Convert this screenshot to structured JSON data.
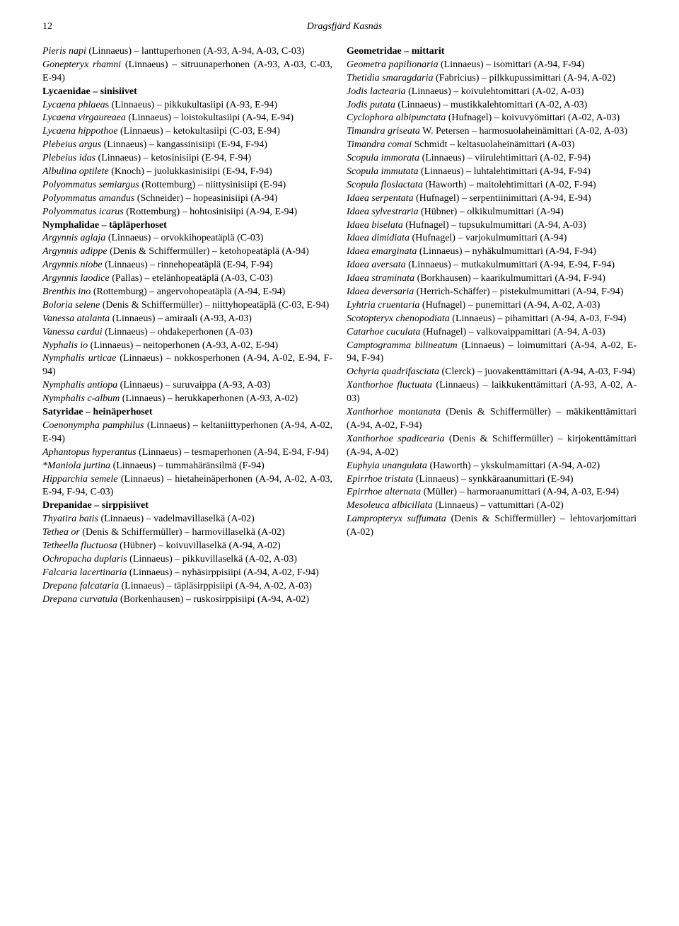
{
  "header": {
    "pageNumber": "12",
    "title": "Dragsfjärd Kasnäs"
  },
  "leftColumn": [
    {
      "type": "entry",
      "segments": [
        {
          "t": "Pieris napi",
          "i": true
        },
        {
          "t": " (Linnaeus) – lanttuperhonen (A-93, A-94, A-03, C-03)"
        }
      ]
    },
    {
      "type": "entry",
      "segments": [
        {
          "t": "Gonepteryx rhamni",
          "i": true
        },
        {
          "t": " (Linnaeus) – sitruunaperhonen (A-93, A-03, C-03, E-94)"
        }
      ]
    },
    {
      "type": "entry",
      "segments": [
        {
          "t": "Lycaenidae – sinisiivet",
          "b": true
        }
      ]
    },
    {
      "type": "entry",
      "segments": [
        {
          "t": "Lycaena phlaea",
          "i": true
        },
        {
          "t": "s (Linnaeus) – pikkukultasiipi (A-93, E-94)"
        }
      ]
    },
    {
      "type": "entry",
      "segments": [
        {
          "t": "Lycaena virgaureaea",
          "i": true
        },
        {
          "t": " (Linnaeus) – loistokultasiipi (A-94, E-94)"
        }
      ]
    },
    {
      "type": "entry",
      "segments": [
        {
          "t": "Lycaena hippothoe",
          "i": true
        },
        {
          "t": " (Linnaeus) – ketokultasiipi (C-03, E-94)"
        }
      ]
    },
    {
      "type": "entry",
      "segments": [
        {
          "t": "Plebeius argus",
          "i": true
        },
        {
          "t": " (Linnaeus) – kangassinisiipi (E-94, F-94)"
        }
      ]
    },
    {
      "type": "entry",
      "segments": [
        {
          "t": "Plebeius idas",
          "i": true
        },
        {
          "t": " (Linnaeus) – ketosinisiipi (E-94, F-94)"
        }
      ]
    },
    {
      "type": "entry",
      "segments": [
        {
          "t": "Albulina optilete",
          "i": true
        },
        {
          "t": " (Knoch) – juolukkasinisiipi (E-94, F-94)"
        }
      ]
    },
    {
      "type": "entry",
      "segments": [
        {
          "t": "Polyommatus semiargus",
          "i": true
        },
        {
          "t": " (Rottemburg) – niittysinisiipi (E-94)"
        }
      ]
    },
    {
      "type": "entry",
      "segments": [
        {
          "t": "Polyommatus amandus",
          "i": true
        },
        {
          "t": " (Schneider) – hopeasinisiipi (A-94)"
        }
      ]
    },
    {
      "type": "entry",
      "segments": [
        {
          "t": "Polyommatus icarus",
          "i": true
        },
        {
          "t": " (Rottemburg) – hohtosinisiipi (A-94, E-94)"
        }
      ]
    },
    {
      "type": "entry",
      "segments": [
        {
          "t": "Nymphalidae – täpläperhoset",
          "b": true
        }
      ]
    },
    {
      "type": "entry",
      "segments": [
        {
          "t": "Argynnis aglaja",
          "i": true
        },
        {
          "t": " (Linnaeus) – orvokkihopeatäplä (C-03)"
        }
      ]
    },
    {
      "type": "entry",
      "segments": [
        {
          "t": "Argynnis adippe",
          "i": true
        },
        {
          "t": " (Denis & Schiffermüller) – ketohopeatäplä (A-94)"
        }
      ]
    },
    {
      "type": "entry",
      "segments": [
        {
          "t": "Argynnis niobe",
          "i": true
        },
        {
          "t": " (Linnaeus) – rinnehopeatäplä (E-94, F-94)"
        }
      ]
    },
    {
      "type": "entry",
      "segments": [
        {
          "t": "Argynnis laodice",
          "i": true
        },
        {
          "t": " (Pallas) – etelänhopeatäplä (A-03, C-03)"
        }
      ]
    },
    {
      "type": "entry",
      "segments": [
        {
          "t": "Brenthis ino",
          "i": true
        },
        {
          "t": " (Rottemburg) – angervohopeatäplä (A-94, E-94)"
        }
      ]
    },
    {
      "type": "entry",
      "segments": [
        {
          "t": "Boloria selene",
          "i": true
        },
        {
          "t": " (Denis & Schiffermüller) – niittyhopeatäplä (C-03, E-94)"
        }
      ]
    },
    {
      "type": "entry",
      "segments": [
        {
          "t": "Vanessa atalanta",
          "i": true
        },
        {
          "t": " (Linnaeus) – amiraali (A-93, A-03)"
        }
      ]
    },
    {
      "type": "entry",
      "segments": [
        {
          "t": "Vanessa cardui",
          "i": true
        },
        {
          "t": " (Linnaeus) – ohdakeperhonen (A-03)"
        }
      ]
    },
    {
      "type": "entry",
      "segments": [
        {
          "t": "Nyphalis io",
          "i": true
        },
        {
          "t": " (Linnaeus) – neitoperhonen (A-93, A-02, E-94)"
        }
      ]
    },
    {
      "type": "entry",
      "segments": [
        {
          "t": "Nymphalis urticae",
          "i": true
        },
        {
          "t": " (Linnaeus) – nokkosperhonen (A-94, A-02, E-94, F-94)"
        }
      ]
    },
    {
      "type": "entry",
      "segments": [
        {
          "t": "Nymphalis antiopa",
          "i": true
        },
        {
          "t": " (Linnaeus) – suruvaippa (A-93, A-03)"
        }
      ]
    },
    {
      "type": "entry",
      "segments": [
        {
          "t": "Nymphalis c-album",
          "i": true
        },
        {
          "t": " (Linnaeus) – herukkaperhonen (A-93, A-02)"
        }
      ]
    },
    {
      "type": "entry",
      "segments": [
        {
          "t": "Satyridae – heinäperhoset",
          "b": true
        }
      ]
    },
    {
      "type": "entry",
      "segments": [
        {
          "t": "Coenonympha pamphilus",
          "i": true
        },
        {
          "t": " (Linnaeus) – keltaniittyperhonen (A-94, A-02, E-94)"
        }
      ]
    },
    {
      "type": "entry",
      "segments": [
        {
          "t": "Aphantopus hyperantus",
          "i": true
        },
        {
          "t": " (Linnaeus) – tesmaperhonen (A-94, E-94, F-94)"
        }
      ]
    },
    {
      "type": "entry",
      "segments": [
        {
          "t": "*Maniola jurtina",
          "i": true
        },
        {
          "t": " (Linnaeus) – tummahäränsilmä (F-94)"
        }
      ]
    },
    {
      "type": "entry",
      "segments": [
        {
          "t": "Hipparchia semele",
          "i": true
        },
        {
          "t": " (Linnaeus) – hietaheinäperhonen (A-94, A-02, A-03, E-94, F-94, C-03)"
        }
      ]
    },
    {
      "type": "entry",
      "segments": [
        {
          "t": "Drepanidae – sirppisiivet",
          "b": true
        }
      ]
    },
    {
      "type": "entry",
      "segments": [
        {
          "t": "Thyatira batis",
          "i": true
        },
        {
          "t": " (Linnaeus) – vadelmavillaselkä (A-02)"
        }
      ]
    },
    {
      "type": "entry",
      "segments": [
        {
          "t": "Tethea or",
          "i": true
        },
        {
          "t": " (Denis & Schiffermüller) – harmovillaselkä (A-02)"
        }
      ]
    },
    {
      "type": "entry",
      "segments": [
        {
          "t": "Tetheella fluctuosa",
          "i": true
        },
        {
          "t": " (Hübner) – koivuvillaselkä (A-94, A-02)"
        }
      ]
    },
    {
      "type": "entry",
      "segments": [
        {
          "t": "Ochropacha duplaris",
          "i": true
        },
        {
          "t": " (Linnaeus) – pikkuvillaselkä (A-02, A-03)"
        }
      ]
    },
    {
      "type": "entry",
      "segments": [
        {
          "t": "Falcaria lacertinaria",
          "i": true
        },
        {
          "t": " (Linnaeus) – nyhäsirppisiipi (A-94, A-02, F-94)"
        }
      ]
    },
    {
      "type": "entry",
      "segments": [
        {
          "t": "Drepana falcataria",
          "i": true
        },
        {
          "t": " (Linnaeus) – täpläsirppisiipi (A-94, A-02, A-03)"
        }
      ]
    },
    {
      "type": "entry",
      "segments": [
        {
          "t": "Drepana curvatula",
          "i": true
        },
        {
          "t": " (Borkenhausen) – ruskosirppisiipi (A-94, A-02)"
        }
      ]
    }
  ],
  "rightColumn": [
    {
      "type": "entry",
      "segments": [
        {
          "t": "Geometridae – mittarit",
          "b": true
        }
      ]
    },
    {
      "type": "entry",
      "segments": [
        {
          "t": "Geometra papilionaria",
          "i": true
        },
        {
          "t": " (Linnaeus) – isomittari (A-94, F-94)"
        }
      ]
    },
    {
      "type": "entry",
      "segments": [
        {
          "t": "Thetidia smaragdaria",
          "i": true
        },
        {
          "t": " (Fabricius) – pilkkupussimittari (A-94, A-02)"
        }
      ]
    },
    {
      "type": "entry",
      "segments": [
        {
          "t": "Jodis lactearia",
          "i": true
        },
        {
          "t": " (Linnaeus) – koivulehtomittari (A-02, A-03)"
        }
      ]
    },
    {
      "type": "entry",
      "segments": [
        {
          "t": "Jodis putata",
          "i": true
        },
        {
          "t": " (Linnaeus) – mustikkalehtomittari (A-02, A-03)"
        }
      ]
    },
    {
      "type": "entry",
      "segments": [
        {
          "t": "Cyclophora albipunctata",
          "i": true
        },
        {
          "t": " (Hufnagel) – koivuvyömittari (A-02, A-03)"
        }
      ]
    },
    {
      "type": "entry",
      "segments": [
        {
          "t": "Timandra griseata",
          "i": true
        },
        {
          "t": " W. Petersen – harmosuolaheinämittari (A-02, A-03)"
        }
      ]
    },
    {
      "type": "entry",
      "segments": [
        {
          "t": "Timandra comai",
          "i": true
        },
        {
          "t": " Schmidt – keltasuolaheinämittari (A-03)"
        }
      ]
    },
    {
      "type": "entry",
      "segments": [
        {
          "t": "Scopula immorata",
          "i": true
        },
        {
          "t": " (Linnaeus) – viirulehtimittari (A-02, F-94)"
        }
      ]
    },
    {
      "type": "entry",
      "segments": [
        {
          "t": "Scopula immutata",
          "i": true
        },
        {
          "t": " (Linnaeus) – luhtalehtimittari (A-94, F-94)"
        }
      ]
    },
    {
      "type": "entry",
      "segments": [
        {
          "t": "Scopula floslactata",
          "i": true
        },
        {
          "t": " (Haworth) – maitolehtimittari (A-02, F-94)"
        }
      ]
    },
    {
      "type": "entry",
      "segments": [
        {
          "t": "Idaea serpentata",
          "i": true
        },
        {
          "t": " (Hufnagel) – serpentiinimittari (A-94, E-94)"
        }
      ]
    },
    {
      "type": "entry",
      "segments": [
        {
          "t": "Idaea sylvestraria",
          "i": true
        },
        {
          "t": " (Hübner) – olkikulmumittari (A-94)"
        }
      ]
    },
    {
      "type": "entry",
      "segments": [
        {
          "t": "Idaea biselata",
          "i": true
        },
        {
          "t": " (Hufnagel) – tupsukulmumittari (A-94, A-03)"
        }
      ]
    },
    {
      "type": "entry",
      "segments": [
        {
          "t": "Idaea dimidiata",
          "i": true
        },
        {
          "t": " (Hufnagel) – varjokulmumittari (A-94)"
        }
      ]
    },
    {
      "type": "entry",
      "segments": [
        {
          "t": "Idaea emarginata",
          "i": true
        },
        {
          "t": " (Linnaeus) – nyhäkulmumittari (A-94, F-94)"
        }
      ]
    },
    {
      "type": "entry",
      "segments": [
        {
          "t": "Idaea aversata",
          "i": true
        },
        {
          "t": " (Linnaeus) – mutkakulmumittari (A-94, E-94, F-94)"
        }
      ]
    },
    {
      "type": "entry",
      "segments": [
        {
          "t": "Idaea straminata",
          "i": true
        },
        {
          "t": " (Borkhausen) – kaarikulmumittari (A-94, F-94)"
        }
      ]
    },
    {
      "type": "entry",
      "segments": [
        {
          "t": "Idaea deversaria",
          "i": true
        },
        {
          "t": " (Herrich-Schäffer) – pistekulmumittari (A-94, F-94)"
        }
      ]
    },
    {
      "type": "entry",
      "segments": [
        {
          "t": "Lyhtria cruentaria",
          "i": true
        },
        {
          "t": " (Hufnagel) – punemittari (A-94, A-02, A-03)"
        }
      ]
    },
    {
      "type": "entry",
      "segments": [
        {
          "t": "Scotopteryx chenopodiata",
          "i": true
        },
        {
          "t": " (Linnaeus) – pihamittari (A-94, A-03, F-94)"
        }
      ]
    },
    {
      "type": "entry",
      "segments": [
        {
          "t": "Catarhoe cuculata",
          "i": true
        },
        {
          "t": " (Hufnagel) – valkovaippamittari (A-94, A-03)"
        }
      ]
    },
    {
      "type": "entry",
      "segments": [
        {
          "t": "Camptogramma bilineatum",
          "i": true
        },
        {
          "t": " (Linnaeus) – loimumittari (A-94, A-02, E-94, F-94)"
        }
      ]
    },
    {
      "type": "entry",
      "segments": [
        {
          "t": "Ochyria quadrifasciata",
          "i": true
        },
        {
          "t": " (Clerck) – juovakenttämittari (A-94, A-03, F-94)"
        }
      ]
    },
    {
      "type": "entry",
      "segments": [
        {
          "t": "Xanthorhoe fluctuata",
          "i": true
        },
        {
          "t": " (Linnaeus) – laikkukenttämittari (A-93, A-02, A-03)"
        }
      ]
    },
    {
      "type": "entry",
      "segments": [
        {
          "t": "Xanthorhoe montanata",
          "i": true
        },
        {
          "t": " (Denis & Schiffermüller) – mäkikenttämittari (A-94, A-02, F-94)"
        }
      ]
    },
    {
      "type": "entry",
      "segments": [
        {
          "t": "Xanthorhoe spadicearia",
          "i": true
        },
        {
          "t": " (Denis & Schiffermüller) – kirjokenttämittari (A-94, A-02)"
        }
      ]
    },
    {
      "type": "entry",
      "segments": [
        {
          "t": "Euphyia unangulata",
          "i": true
        },
        {
          "t": " (Haworth) – ykskulmamittari (A-94, A-02)"
        }
      ]
    },
    {
      "type": "entry",
      "segments": [
        {
          "t": "Epirrhoe tristata",
          "i": true
        },
        {
          "t": " (Linnaeus) – synkkäraanumittari (E-94)"
        }
      ]
    },
    {
      "type": "entry",
      "segments": [
        {
          "t": "Epirrhoe alternata",
          "i": true
        },
        {
          "t": " (Müller) – harmoraanumittari (A-94, A-03, E-94)"
        }
      ]
    },
    {
      "type": "entry",
      "segments": [
        {
          "t": "Mesoleuca albicillata",
          "i": true
        },
        {
          "t": " (Linnaeus) – vattumittari (A-02)"
        }
      ]
    },
    {
      "type": "entry",
      "segments": [
        {
          "t": "Lampropteryx suffumata",
          "i": true
        },
        {
          "t": " (Denis & Schiffermüller) – lehtovarjomittari (A-02)"
        }
      ]
    }
  ]
}
